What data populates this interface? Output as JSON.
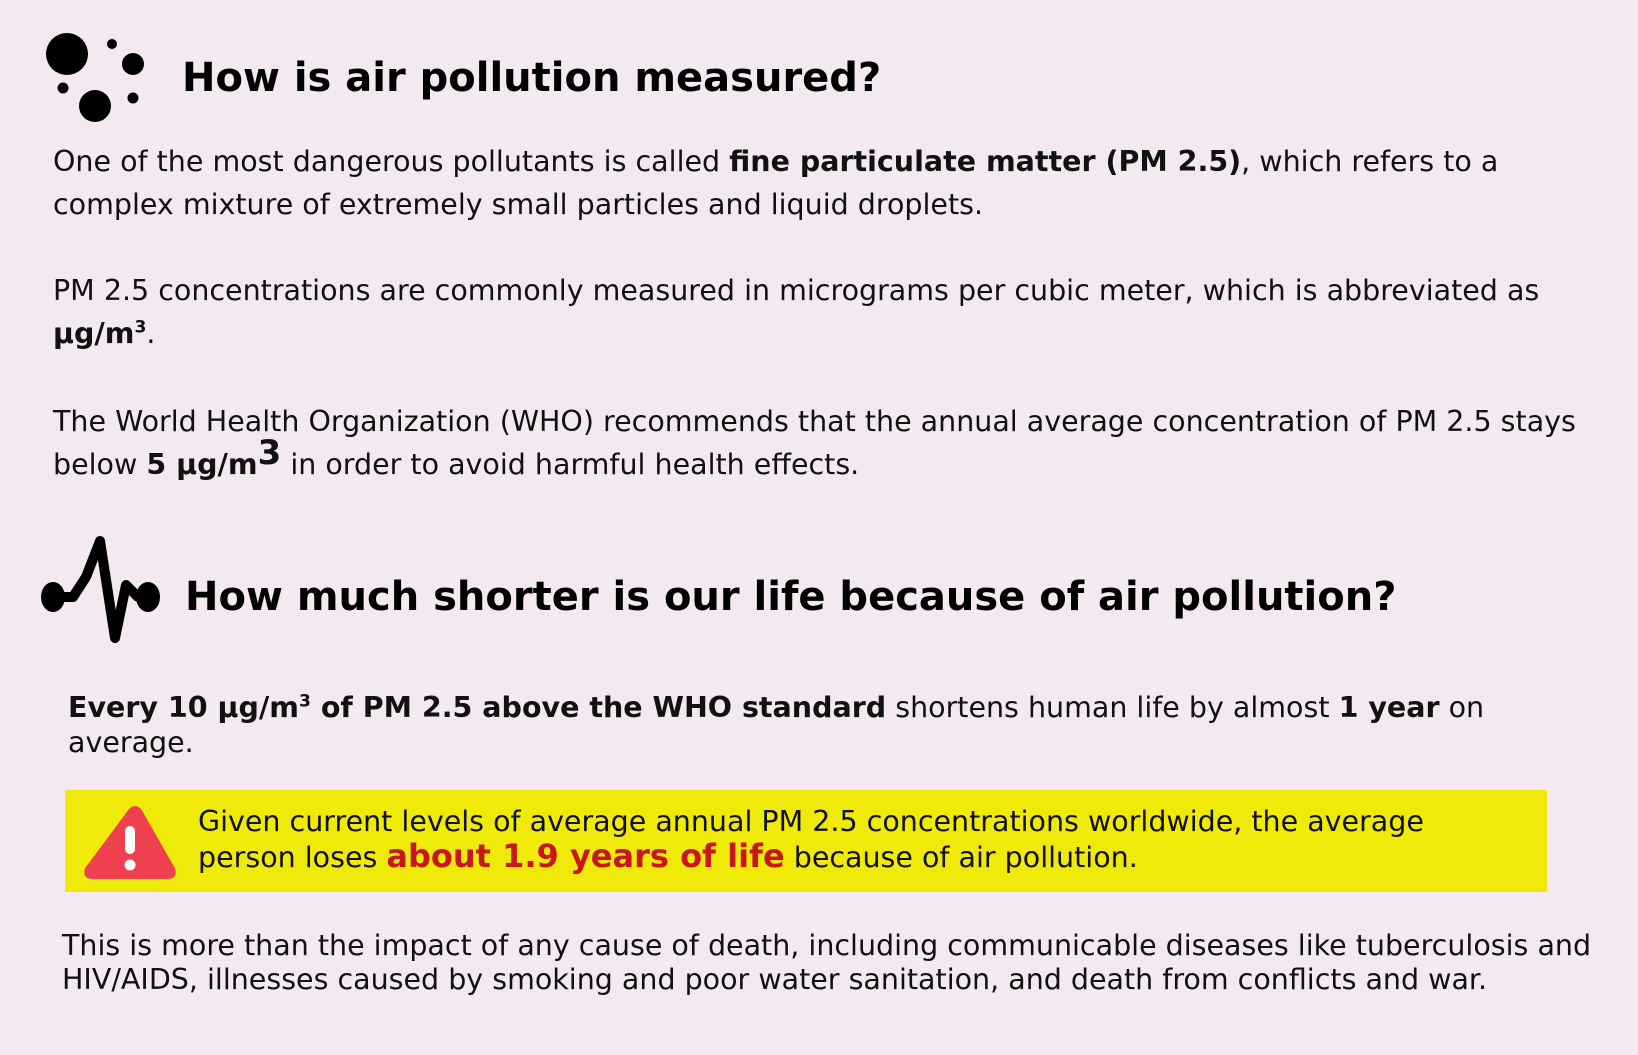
{
  "colors": {
    "background": "#f4e8f1",
    "alert_background": "#f0ea0b",
    "alert_highlight": "#c8161d",
    "warning_icon": "#ef4050"
  },
  "section1": {
    "icon": "particles-icon",
    "heading": "How is air pollution measured?",
    "p1": {
      "before": "One of the most dangerous pollutants is called ",
      "bold": "fine particulate matter (PM 2.5)",
      "after": ", which refers to a complex mixture of extremely small particles and liquid droplets."
    },
    "p2": {
      "before": "PM 2.5 concentrations are commonly measured in micrograms per cubic meter, which is abbreviated as ",
      "unit": "µg/m",
      "unit_sup": "3",
      "after": "."
    },
    "p3": {
      "before": "The World Health Organization (WHO) recommends that the annual average concentration of PM 2.5 stays below ",
      "bold": "5 µg/m",
      "bold_sup": "3",
      "after": " in order to avoid harmful health effects."
    }
  },
  "section2": {
    "icon": "heartbeat-icon",
    "heading": "How much shorter is our life because of air pollution?",
    "p4": {
      "bold1": "Every 10 µg/m",
      "bold1_sup": "3",
      "bold1_after": " of PM 2.5 above the WHO standard",
      "mid": " shortens human life by almost ",
      "bold2": "1 year",
      "after": " on average."
    },
    "alert": {
      "icon": "warning-icon",
      "before": "Given current levels of average annual PM 2.5 concentrations worldwide, the average person loses ",
      "highlight": "about 1.9 years of life",
      "after": " because of air pollution."
    },
    "p5": "This is more than the impact of any cause of death, including communicable diseases like tuberculosis and HIV/AIDS, illnesses caused by smoking and poor water sanitation, and death from conflicts and war."
  }
}
